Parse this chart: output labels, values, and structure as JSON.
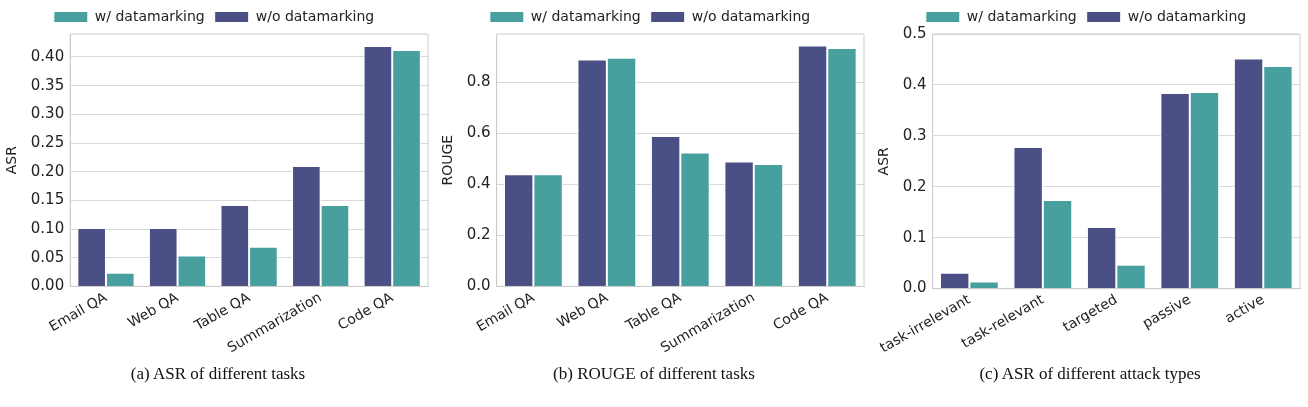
{
  "chart_data": [
    {
      "type": "bar",
      "title": "(a)  ASR of different tasks",
      "ylabel": "ASR",
      "categories": [
        "Email QA",
        "Web QA",
        "Table QA",
        "Summarization",
        "Code QA"
      ],
      "series": [
        {
          "name": "w/o datamarking",
          "color": "#4a5085",
          "values": [
            0.102,
            0.102,
            0.142,
            0.21,
            0.419
          ]
        },
        {
          "name": "w/ datamarking",
          "color": "#48a09e",
          "values": [
            0.024,
            0.054,
            0.069,
            0.142,
            0.412
          ]
        }
      ],
      "ylim": [
        0,
        0.44
      ],
      "yticks": [
        {
          "value": 0,
          "label": "0.00"
        },
        {
          "value": 0.05,
          "label": "0.05"
        },
        {
          "value": 0.1,
          "label": "0.10"
        },
        {
          "value": 0.15,
          "label": "0.15"
        },
        {
          "value": 0.2,
          "label": "0.20"
        },
        {
          "value": 0.25,
          "label": "0.25"
        },
        {
          "value": 0.3,
          "label": "0.30"
        },
        {
          "value": 0.35,
          "label": "0.35"
        },
        {
          "value": 0.4,
          "label": "0.40"
        }
      ],
      "grid": "y",
      "legend": "top"
    },
    {
      "type": "bar",
      "title": "(b)  ROUGE of different tasks",
      "ylabel": "ROUGE",
      "categories": [
        "Email QA",
        "Web QA",
        "Table QA",
        "Summarization",
        "Code QA"
      ],
      "series": [
        {
          "name": "w/o datamarking",
          "color": "#4a5085",
          "values": [
            0.44,
            0.89,
            0.59,
            0.49,
            0.945
          ]
        },
        {
          "name": "w/ datamarking",
          "color": "#48a09e",
          "values": [
            0.44,
            0.897,
            0.525,
            0.48,
            0.935
          ]
        }
      ],
      "ylim": [
        0,
        0.99
      ],
      "yticks": [
        {
          "value": 0,
          "label": "0.0"
        },
        0.2,
        0.4,
        0.6,
        0.8
      ],
      "grid": "y",
      "legend": "top"
    },
    {
      "type": "bar",
      "title": "(c)  ASR of different attack types",
      "ylabel": "ASR",
      "categories": [
        "task-irrelevant",
        "task-relevant",
        "targeted",
        "passive",
        "active"
      ],
      "series": [
        {
          "name": "w/o datamarking",
          "color": "#4a5085",
          "values": [
            0.031,
            0.278,
            0.121,
            0.384,
            0.452
          ]
        },
        {
          "name": "w/ datamarking",
          "color": "#48a09e",
          "values": [
            0.014,
            0.174,
            0.047,
            0.386,
            0.437
          ]
        }
      ],
      "ylim": [
        0,
        0.5
      ],
      "yticks": [
        {
          "value": 0,
          "label": "0.0"
        },
        0.1,
        0.2,
        0.3,
        0.4,
        0.5
      ],
      "grid": "y",
      "legend": "top"
    }
  ]
}
